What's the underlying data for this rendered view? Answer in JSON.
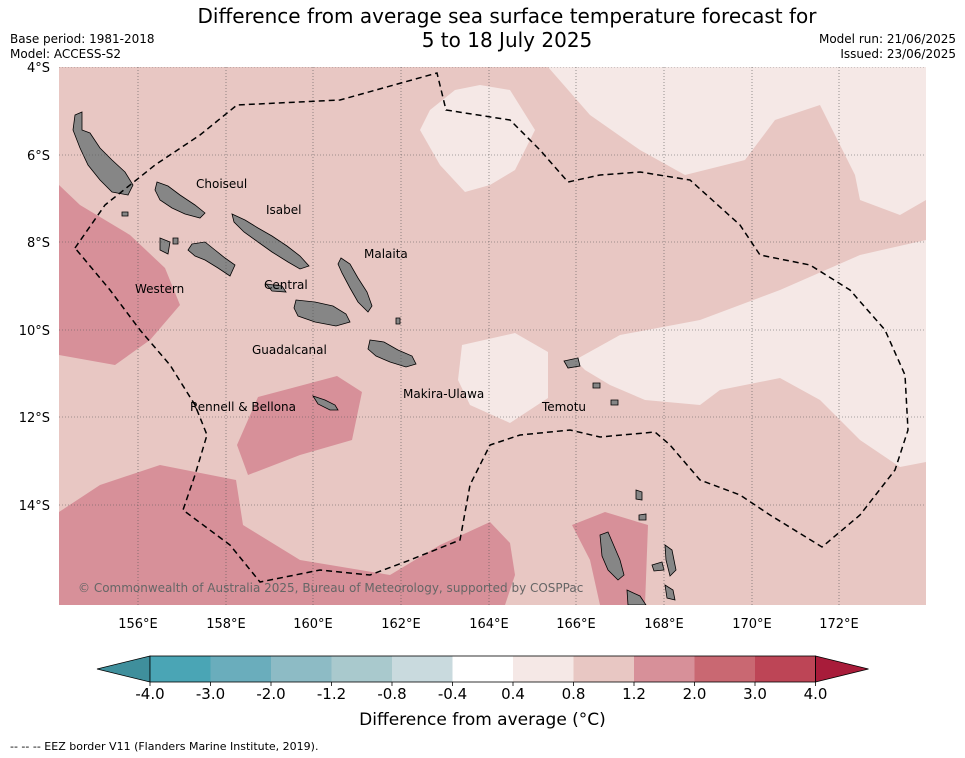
{
  "title_line1": "Difference from average sea surface temperature forecast for",
  "title_line2": "5 to 18 July 2025",
  "meta": {
    "base_period": "Base period: 1981-2018",
    "model": "Model: ACCESS-S2",
    "model_run": "Model run: 21/06/2025",
    "issued": "Issued: 23/06/2025"
  },
  "map": {
    "lat_ticks": [
      "4°S",
      "6°S",
      "8°S",
      "10°S",
      "12°S",
      "14°S"
    ],
    "lon_ticks": [
      "156°E",
      "158°E",
      "160°E",
      "162°E",
      "164°E",
      "166°E",
      "168°E",
      "170°E",
      "172°E"
    ],
    "region_labels": [
      "Choiseul",
      "Isabel",
      "Malaita",
      "Western",
      "Central",
      "Guadalcanal",
      "Makira-Ulawa",
      "Rennell & Bellona",
      "Temotu"
    ],
    "copyright": "© Commonwealth of Australia 2025, Bureau of Meteorology, supported by COSPPac",
    "colors": {
      "0.4-0.8": "#f5e8e6",
      "0.8-1.2": "#e8c7c3",
      "1.2-2.0": "#d79099",
      "land": "#868686",
      "eez": "#000000"
    }
  },
  "colorbar": {
    "title": "Difference from average (°C)",
    "ticks": [
      "-4.0",
      "-3.0",
      "-2.0",
      "-1.2",
      "-0.8",
      "-0.4",
      "0.4",
      "0.8",
      "1.2",
      "2.0",
      "3.0",
      "4.0"
    ],
    "colors": [
      "#3f8f9c",
      "#4aa5b5",
      "#6aadbc",
      "#8dbbc5",
      "#a9c9cd",
      "#c9dade",
      "#ffffff",
      "#f5e8e6",
      "#e8c7c3",
      "#d79099",
      "#c96872",
      "#bd4556",
      "#a81c3a"
    ]
  },
  "footnote": "--  --  -- EEZ border V11 (Flanders Marine Institute, 2019)."
}
